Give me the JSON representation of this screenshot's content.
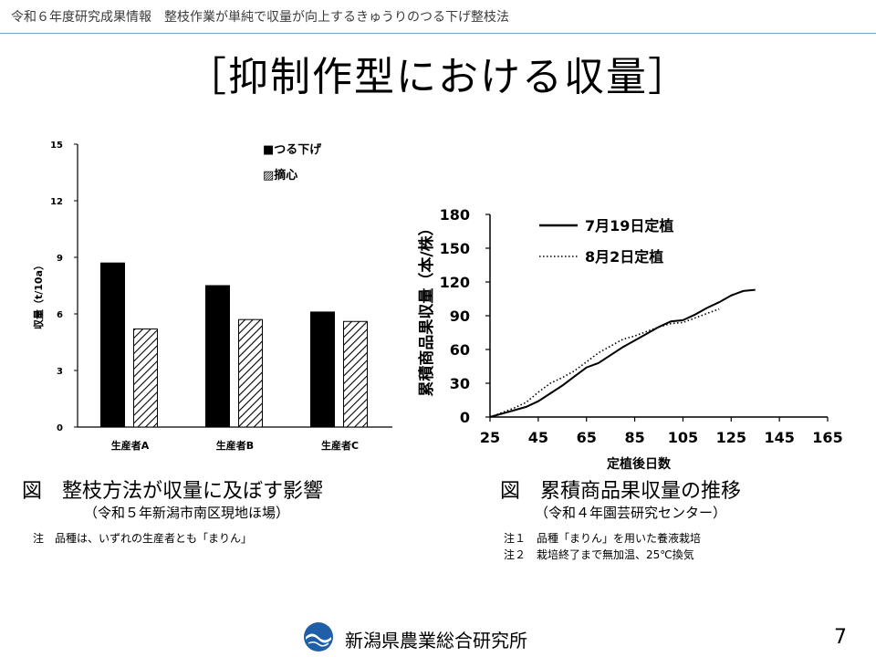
{
  "header": {
    "text": "令和６年度研究成果情報　整枝作業が単純で収量が向上するきゅうりのつる下げ整枝法"
  },
  "title": "［抑制作型における収量］",
  "left_chart": {
    "caption": "図　整枝方法が収量に及ぼす影響",
    "subcaption": "（令和５年新潟市南区現地ほ場）",
    "note": "注　品種は、いずれの生産者とも「まりん」"
  },
  "right_chart": {
    "caption": "図　累積商品果収量の推移",
    "subcaption": "（令和４年園芸研究センター）",
    "notes": [
      "注１　品種「まりん」を用いた養液栽培",
      "注２　栽培終了まで無加温、25℃換気"
    ]
  },
  "footer": {
    "org": "新潟県農業総合研究所",
    "page": "7"
  },
  "colors": {
    "header_rule": "#7fa6c9",
    "logo_blue": "#1f5fa8"
  },
  "chart_data": [
    {
      "type": "bar",
      "categories": [
        "生産者A",
        "生産者B",
        "生産者C"
      ],
      "series": [
        {
          "name": "■つる下げ",
          "values": [
            8.7,
            7.5,
            6.1
          ],
          "fill": "solid-black"
        },
        {
          "name": "▨摘心",
          "values": [
            5.2,
            5.7,
            5.6
          ],
          "fill": "hatched"
        }
      ],
      "ylabel": "収量（t/10a）",
      "ylim": [
        0,
        15
      ],
      "yticks": [
        "0",
        "3",
        "6",
        "9",
        "12",
        "15"
      ],
      "legend": "top-right"
    },
    {
      "type": "line",
      "series": [
        {
          "name": "7月19日定植",
          "style": "solid",
          "x": [
            25,
            30,
            35,
            40,
            45,
            50,
            55,
            60,
            65,
            70,
            75,
            80,
            85,
            90,
            95,
            100,
            105,
            110,
            115,
            120,
            125,
            130,
            135
          ],
          "y": [
            0,
            3,
            6,
            9,
            14,
            21,
            28,
            36,
            44,
            48,
            55,
            62,
            68,
            74,
            80,
            85,
            86,
            91,
            97,
            102,
            108,
            112,
            113
          ]
        },
        {
          "name": "8月2日定植",
          "style": "dotted",
          "x": [
            25,
            30,
            35,
            40,
            45,
            50,
            55,
            60,
            65,
            70,
            75,
            80,
            85,
            90,
            95,
            100,
            105,
            110,
            115,
            120
          ],
          "y": [
            0,
            4,
            8,
            13,
            22,
            30,
            35,
            41,
            49,
            57,
            63,
            69,
            72,
            76,
            80,
            83,
            84,
            88,
            92,
            96
          ]
        }
      ],
      "xlabel": "定植後日数",
      "ylabel": "累積商品果収量（本/株）",
      "xlim": [
        25,
        165
      ],
      "ylim": [
        0,
        180
      ],
      "xticks": [
        "25",
        "45",
        "65",
        "85",
        "105",
        "125",
        "145",
        "165"
      ],
      "yticks": [
        "0",
        "30",
        "60",
        "90",
        "120",
        "150",
        "180"
      ],
      "legend": "top-left"
    }
  ]
}
